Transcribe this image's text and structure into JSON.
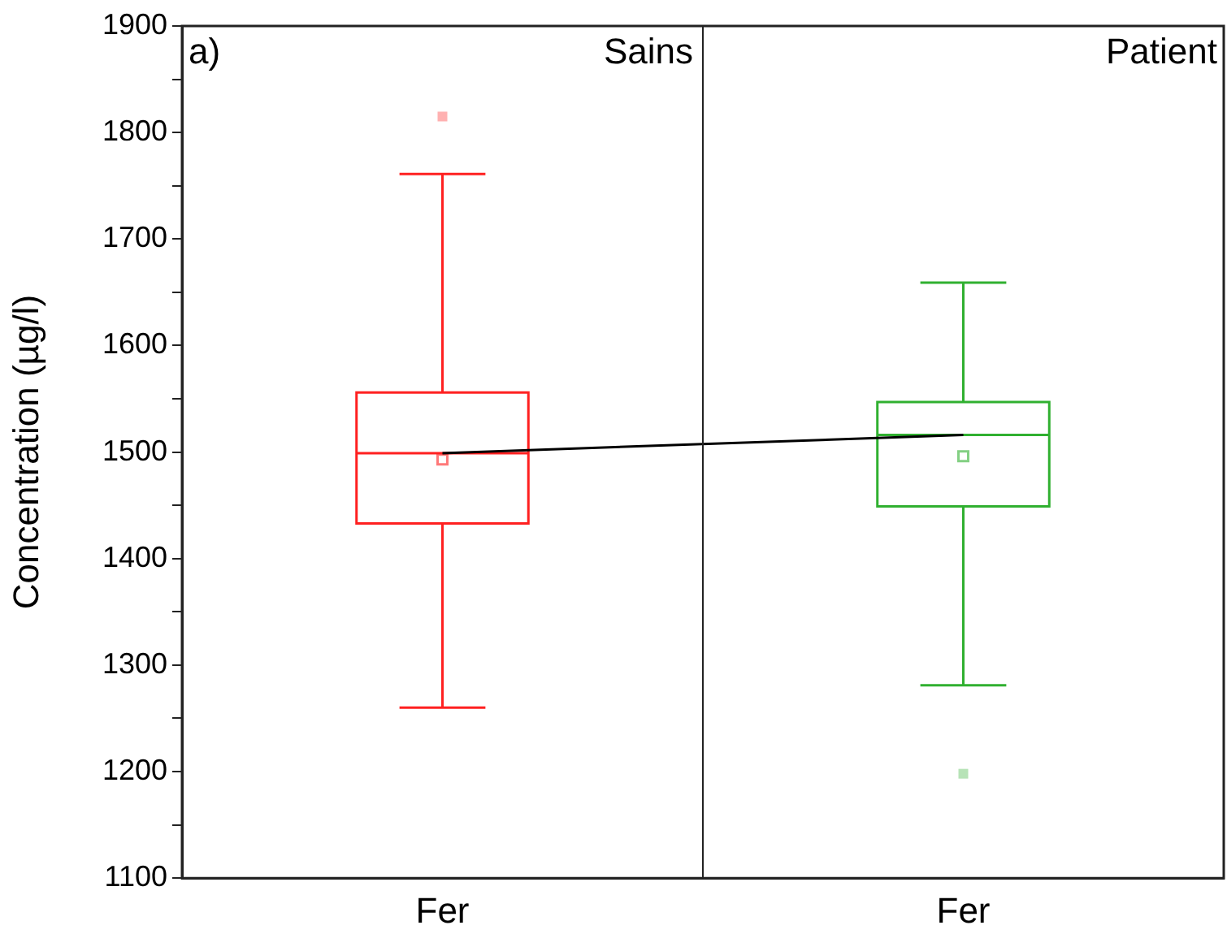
{
  "chart_data": {
    "type": "box",
    "categories": [
      "Fer",
      "Fer"
    ],
    "ylabel": "Concentration (µg/l)",
    "ylim": [
      1100,
      1900
    ],
    "yticks": [
      1100,
      {
        "value": 1150,
        "label": null
      },
      1200,
      {
        "value": 1250,
        "label": null
      },
      1300,
      {
        "value": 1350,
        "label": null
      },
      1400,
      {
        "value": 1450,
        "label": null
      },
      1500,
      {
        "value": 1550,
        "label": null
      },
      1600,
      {
        "value": 1650,
        "label": null
      },
      1700,
      {
        "value": 1750,
        "label": null
      },
      1800,
      {
        "value": 1850,
        "label": null
      },
      1900
    ],
    "series": [
      {
        "type": "box",
        "colors": [
          "#ff2020",
          "#30b030"
        ],
        "boxes": [
          {
            "low": 1260,
            "q1": 1433,
            "median": 1499,
            "q3": 1556,
            "high": 1761,
            "mean": 1493,
            "outliers": [
              1815
            ]
          },
          {
            "low": 1281,
            "q1": 1449,
            "median": 1516,
            "q3": 1547,
            "high": 1659,
            "mean": 1496,
            "outliers": [
              1198
            ]
          }
        ]
      },
      {
        "type": "line",
        "color": "#000000",
        "values": [
          1499,
          1516
        ]
      }
    ],
    "annotations": [
      "a)",
      "Sains",
      "Patient"
    ]
  }
}
